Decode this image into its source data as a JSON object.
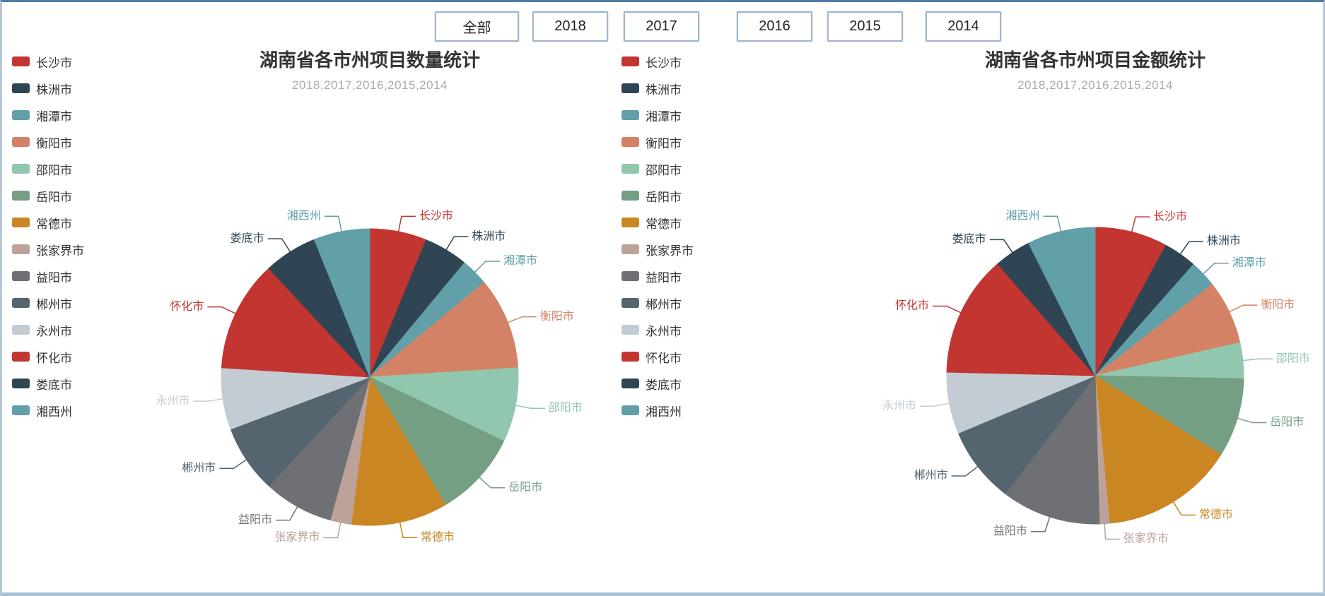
{
  "page": {
    "border_color": "#9fb7cf",
    "background": "#ffffff"
  },
  "toolbar": {
    "buttons": [
      {
        "label": "全部"
      },
      {
        "label": "2018"
      },
      {
        "label": "2017"
      },
      {
        "label": "2016"
      },
      {
        "label": "2015"
      },
      {
        "label": "2014"
      }
    ]
  },
  "theme": {
    "title_color": "#333333",
    "subtitle_color": "#aaaaaa",
    "legend_text_color": "#333333"
  },
  "palette": [
    "#c23531",
    "#2f4554",
    "#61a0a8",
    "#d48265",
    "#91c7ae",
    "#749f83",
    "#ca8622",
    "#bda29a",
    "#6e7074",
    "#546570",
    "#c4ccd3"
  ],
  "chart_data": [
    {
      "type": "pie",
      "title": "湖南省各市州项目数量统计",
      "subtitle": "2018,2017,2016,2015,2014",
      "legend_position": "left",
      "labels": [
        "长沙市",
        "株洲市",
        "湘潭市",
        "衡阳市",
        "邵阳市",
        "岳阳市",
        "常德市",
        "张家界市",
        "益阳市",
        "郴州市",
        "永州市",
        "怀化市",
        "娄底市",
        "湘西州"
      ],
      "values_pct_estimated": [
        6.2,
        4.8,
        3.0,
        10.0,
        8.1,
        9.4,
        10.5,
        2.3,
        7.6,
        7.4,
        6.7,
        12.1,
        5.8,
        6.1
      ]
    },
    {
      "type": "pie",
      "title": "湖南省各市州项目金额统计",
      "subtitle": "2018,2017,2016,2015,2014",
      "legend_position": "left",
      "labels": [
        "长沙市",
        "株洲市",
        "湘潭市",
        "衡阳市",
        "邵阳市",
        "岳阳市",
        "常德市",
        "张家界市",
        "益阳市",
        "郴州市",
        "永州市",
        "怀化市",
        "娄底市",
        "湘西州"
      ],
      "values_pct_estimated": [
        7.9,
        3.6,
        2.9,
        7.0,
        3.9,
        8.6,
        14.5,
        1.1,
        10.8,
        8.3,
        6.7,
        13.2,
        4.0,
        7.4
      ]
    }
  ]
}
